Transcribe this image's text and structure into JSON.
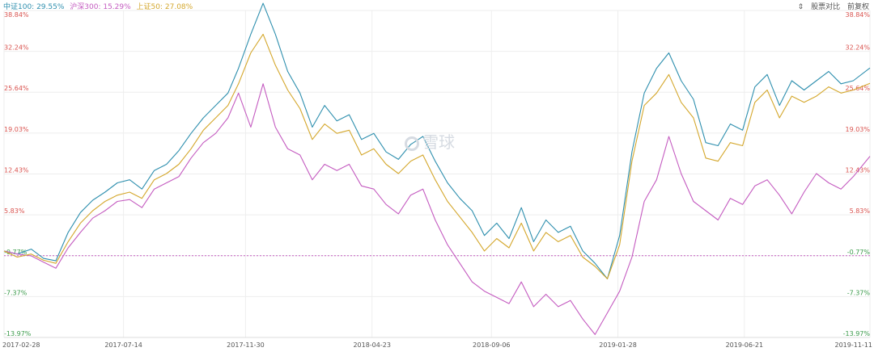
{
  "legend": [
    {
      "label": "中证100: 29.55%",
      "color": "#2e8fae"
    },
    {
      "label": "沪深300: 15.29%",
      "color": "#c45bc0"
    },
    {
      "label": "上证50: 27.08%",
      "color": "#d4a72c"
    }
  ],
  "toolbar": {
    "compare_label": "股票对比",
    "adjust_label": "前复权",
    "scroll_icon": "vertical-arrows-icon"
  },
  "watermark": {
    "text": "雪球",
    "icon": "snowball-logo-icon"
  },
  "colors": {
    "up_label": "#d9534f",
    "down_label": "#3a9a4a",
    "baseline": "#c45bc0",
    "grid": "#eeeeee"
  },
  "chart_data": {
    "type": "line",
    "title": "",
    "xlabel": "",
    "ylabel": "",
    "y_tick_labels": [
      "38.84%",
      "32.24%",
      "25.64%",
      "19.03%",
      "12.43%",
      "5.83%",
      "-0.77%",
      "-7.37%",
      "-13.97%"
    ],
    "y_ticks": [
      38.84,
      32.24,
      25.64,
      19.03,
      12.43,
      5.83,
      -0.77,
      -7.37,
      -13.97
    ],
    "ylim": [
      -13.97,
      38.84
    ],
    "baseline": -0.77,
    "x_tick_labels": [
      "2017-02-28",
      "2017-07-14",
      "2017-11-30",
      "2018-04-23",
      "2018-09-06",
      "2019-01-28",
      "2019-06-21",
      "2019-11-11"
    ],
    "xlim": [
      "2017-02-28",
      "2019-11-11"
    ],
    "grid": true,
    "legend_position": "top-left",
    "x": [
      "2017-02-28",
      "2017-03-15",
      "2017-03-31",
      "2017-04-14",
      "2017-04-28",
      "2017-05-12",
      "2017-05-26",
      "2017-06-09",
      "2017-06-23",
      "2017-07-07",
      "2017-07-21",
      "2017-08-04",
      "2017-08-18",
      "2017-09-01",
      "2017-09-15",
      "2017-09-29",
      "2017-10-13",
      "2017-10-27",
      "2017-11-10",
      "2017-11-22",
      "2017-12-06",
      "2017-12-20",
      "2018-01-03",
      "2018-01-17",
      "2018-01-31",
      "2018-02-14",
      "2018-02-28",
      "2018-03-14",
      "2018-03-28",
      "2018-04-11",
      "2018-04-25",
      "2018-05-09",
      "2018-05-23",
      "2018-06-06",
      "2018-06-20",
      "2018-07-04",
      "2018-07-18",
      "2018-08-01",
      "2018-08-15",
      "2018-08-29",
      "2018-09-12",
      "2018-09-26",
      "2018-10-10",
      "2018-10-24",
      "2018-11-07",
      "2018-11-21",
      "2018-12-05",
      "2018-12-19",
      "2019-01-02",
      "2019-01-16",
      "2019-01-30",
      "2019-02-13",
      "2019-02-27",
      "2019-03-13",
      "2019-03-27",
      "2019-04-10",
      "2019-04-24",
      "2019-05-08",
      "2019-05-22",
      "2019-06-05",
      "2019-06-19",
      "2019-07-03",
      "2019-07-17",
      "2019-07-31",
      "2019-08-14",
      "2019-08-28",
      "2019-09-11",
      "2019-09-25",
      "2019-10-09",
      "2019-10-23",
      "2019-11-11"
    ],
    "series": [
      {
        "name": "中证100",
        "color": "#2e8fae",
        "values": [
          0.0,
          -0.5,
          0.3,
          -1.2,
          -1.6,
          3.0,
          6.2,
          8.2,
          9.5,
          11.0,
          11.5,
          10.0,
          13.0,
          14.0,
          16.2,
          19.0,
          21.5,
          23.5,
          25.5,
          29.5,
          35.0,
          40.0,
          35.0,
          29.0,
          25.5,
          20.0,
          23.5,
          21.0,
          22.0,
          18.0,
          19.0,
          16.0,
          14.8,
          17.2,
          18.5,
          14.5,
          11.0,
          8.5,
          6.5,
          2.5,
          4.5,
          2.0,
          7.0,
          1.5,
          5.0,
          3.0,
          4.0,
          0.0,
          -2.0,
          -4.5,
          2.5,
          16.0,
          25.5,
          29.5,
          32.0,
          27.5,
          24.5,
          17.5,
          17.0,
          20.5,
          19.5,
          26.5,
          28.5,
          23.5,
          27.5,
          26.0,
          27.5,
          29.0,
          27.0,
          27.5,
          29.55
        ]
      },
      {
        "name": "沪深300",
        "color": "#c45bc0",
        "values": [
          0.0,
          -0.5,
          -0.8,
          -1.8,
          -2.8,
          0.5,
          3.0,
          5.3,
          6.5,
          8.0,
          8.3,
          7.0,
          10.0,
          11.0,
          12.0,
          15.0,
          17.5,
          19.0,
          21.5,
          25.5,
          20.0,
          27.0,
          20.0,
          16.5,
          15.5,
          11.5,
          14.0,
          13.0,
          14.0,
          10.5,
          10.0,
          7.5,
          6.0,
          9.0,
          10.0,
          5.0,
          1.0,
          -2.0,
          -5.0,
          -6.5,
          -7.5,
          -8.5,
          -5.0,
          -9.0,
          -7.0,
          -9.0,
          -8.0,
          -11.0,
          -13.5,
          -10.0,
          -6.5,
          -1.0,
          8.0,
          11.5,
          18.5,
          12.5,
          8.0,
          6.5,
          5.0,
          8.5,
          7.5,
          10.5,
          11.5,
          9.0,
          6.0,
          9.5,
          12.5,
          11.0,
          10.0,
          12.0,
          15.29
        ]
      },
      {
        "name": "上证50",
        "color": "#d4a72c",
        "values": [
          0.0,
          -1.0,
          -0.5,
          -1.5,
          -2.0,
          1.5,
          4.5,
          6.5,
          8.0,
          9.0,
          9.5,
          8.5,
          11.5,
          12.5,
          14.0,
          16.5,
          19.5,
          21.5,
          23.5,
          27.0,
          32.0,
          35.0,
          30.0,
          26.0,
          23.0,
          18.0,
          20.5,
          19.0,
          19.5,
          15.5,
          16.5,
          14.0,
          12.5,
          14.5,
          15.5,
          11.5,
          8.0,
          5.5,
          3.0,
          0.0,
          2.0,
          0.5,
          4.5,
          0.0,
          3.0,
          1.5,
          2.5,
          -1.0,
          -2.5,
          -4.5,
          1.0,
          14.5,
          23.5,
          25.5,
          28.5,
          24.0,
          21.5,
          15.0,
          14.5,
          17.5,
          17.0,
          24.0,
          26.0,
          21.5,
          25.0,
          24.0,
          25.0,
          26.5,
          25.5,
          26.0,
          27.08
        ]
      }
    ]
  }
}
